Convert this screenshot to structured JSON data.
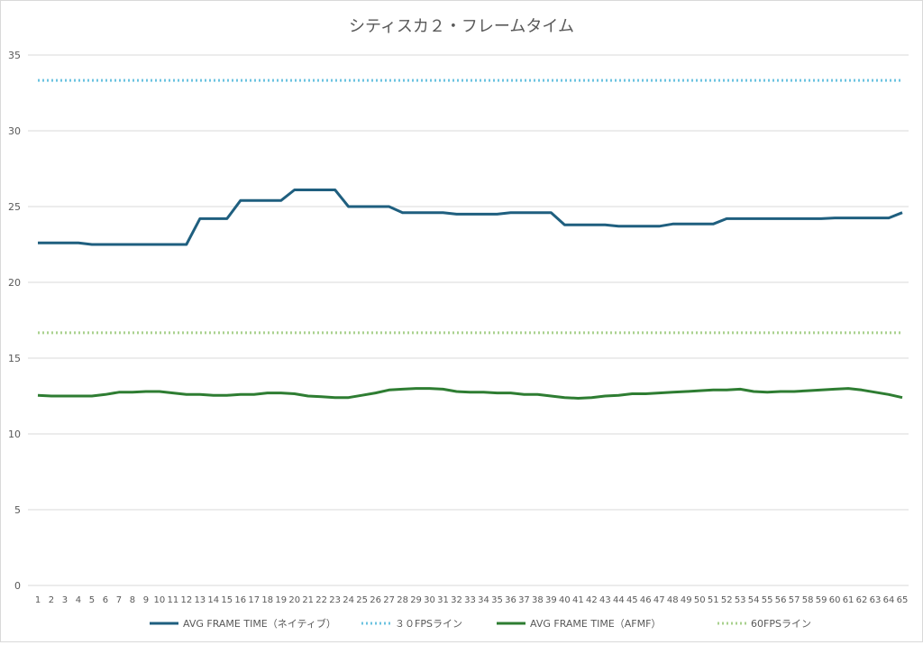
{
  "chart_data": {
    "type": "line",
    "title": "シティスカ２・フレームタイム",
    "xlabel": "",
    "ylabel": "",
    "ylim": [
      0,
      35
    ],
    "yticks": [
      0,
      5,
      10,
      15,
      20,
      25,
      30,
      35
    ],
    "grid": true,
    "legend_position": "bottom",
    "x": [
      1,
      2,
      3,
      4,
      5,
      6,
      7,
      8,
      9,
      10,
      11,
      12,
      13,
      14,
      15,
      16,
      17,
      18,
      19,
      20,
      21,
      22,
      23,
      24,
      25,
      26,
      27,
      28,
      29,
      30,
      31,
      32,
      33,
      34,
      35,
      36,
      37,
      38,
      39,
      40,
      41,
      42,
      43,
      44,
      45,
      46,
      47,
      48,
      49,
      50,
      51,
      52,
      53,
      54,
      55,
      56,
      57,
      58,
      59,
      60,
      61,
      62,
      63,
      64,
      65
    ],
    "series": [
      {
        "name": "AVG FRAME TIME（ネイティブ）",
        "color": "#1f5f7f",
        "style": "solid",
        "values": [
          22.6,
          22.6,
          22.6,
          22.6,
          22.5,
          22.5,
          22.5,
          22.5,
          22.5,
          22.5,
          22.5,
          22.5,
          24.2,
          24.2,
          24.2,
          25.4,
          25.4,
          25.4,
          25.4,
          26.1,
          26.1,
          26.1,
          26.1,
          25.0,
          25.0,
          25.0,
          25.0,
          24.6,
          24.6,
          24.6,
          24.6,
          24.5,
          24.5,
          24.5,
          24.5,
          24.6,
          24.6,
          24.6,
          24.6,
          23.8,
          23.8,
          23.8,
          23.8,
          23.7,
          23.7,
          23.7,
          23.7,
          23.85,
          23.85,
          23.85,
          23.85,
          24.2,
          24.2,
          24.2,
          24.2,
          24.2,
          24.2,
          24.2,
          24.2,
          24.25,
          24.25,
          24.25,
          24.25,
          24.25,
          24.6
        ]
      },
      {
        "name": "３０FPSライン",
        "color": "#6cc3e0",
        "style": "dotted",
        "values": [
          33.33,
          33.33,
          33.33,
          33.33,
          33.33,
          33.33,
          33.33,
          33.33,
          33.33,
          33.33,
          33.33,
          33.33,
          33.33,
          33.33,
          33.33,
          33.33,
          33.33,
          33.33,
          33.33,
          33.33,
          33.33,
          33.33,
          33.33,
          33.33,
          33.33,
          33.33,
          33.33,
          33.33,
          33.33,
          33.33,
          33.33,
          33.33,
          33.33,
          33.33,
          33.33,
          33.33,
          33.33,
          33.33,
          33.33,
          33.33,
          33.33,
          33.33,
          33.33,
          33.33,
          33.33,
          33.33,
          33.33,
          33.33,
          33.33,
          33.33,
          33.33,
          33.33,
          33.33,
          33.33,
          33.33,
          33.33,
          33.33,
          33.33,
          33.33,
          33.33,
          33.33,
          33.33,
          33.33,
          33.33,
          33.33
        ]
      },
      {
        "name": "AVG FRAME TIME（AFMF）",
        "color": "#2e7d32",
        "style": "solid",
        "values": [
          12.55,
          12.5,
          12.5,
          12.5,
          12.5,
          12.6,
          12.75,
          12.75,
          12.8,
          12.8,
          12.7,
          12.6,
          12.6,
          12.55,
          12.55,
          12.6,
          12.6,
          12.7,
          12.7,
          12.65,
          12.5,
          12.45,
          12.4,
          12.4,
          12.55,
          12.7,
          12.9,
          12.95,
          13.0,
          13.0,
          12.95,
          12.8,
          12.75,
          12.75,
          12.7,
          12.7,
          12.6,
          12.6,
          12.5,
          12.4,
          12.35,
          12.4,
          12.5,
          12.55,
          12.65,
          12.65,
          12.7,
          12.75,
          12.8,
          12.85,
          12.9,
          12.9,
          12.95,
          12.8,
          12.75,
          12.8,
          12.8,
          12.85,
          12.9,
          12.95,
          13.0,
          12.9,
          12.75,
          12.6,
          12.4
        ]
      },
      {
        "name": "60FPSライン",
        "color": "#a9d18e",
        "style": "dotted",
        "values": [
          16.67,
          16.67,
          16.67,
          16.67,
          16.67,
          16.67,
          16.67,
          16.67,
          16.67,
          16.67,
          16.67,
          16.67,
          16.67,
          16.67,
          16.67,
          16.67,
          16.67,
          16.67,
          16.67,
          16.67,
          16.67,
          16.67,
          16.67,
          16.67,
          16.67,
          16.67,
          16.67,
          16.67,
          16.67,
          16.67,
          16.67,
          16.67,
          16.67,
          16.67,
          16.67,
          16.67,
          16.67,
          16.67,
          16.67,
          16.67,
          16.67,
          16.67,
          16.67,
          16.67,
          16.67,
          16.67,
          16.67,
          16.67,
          16.67,
          16.67,
          16.67,
          16.67,
          16.67,
          16.67,
          16.67,
          16.67,
          16.67,
          16.67,
          16.67,
          16.67,
          16.67,
          16.67,
          16.67,
          16.67,
          16.67
        ]
      }
    ]
  }
}
